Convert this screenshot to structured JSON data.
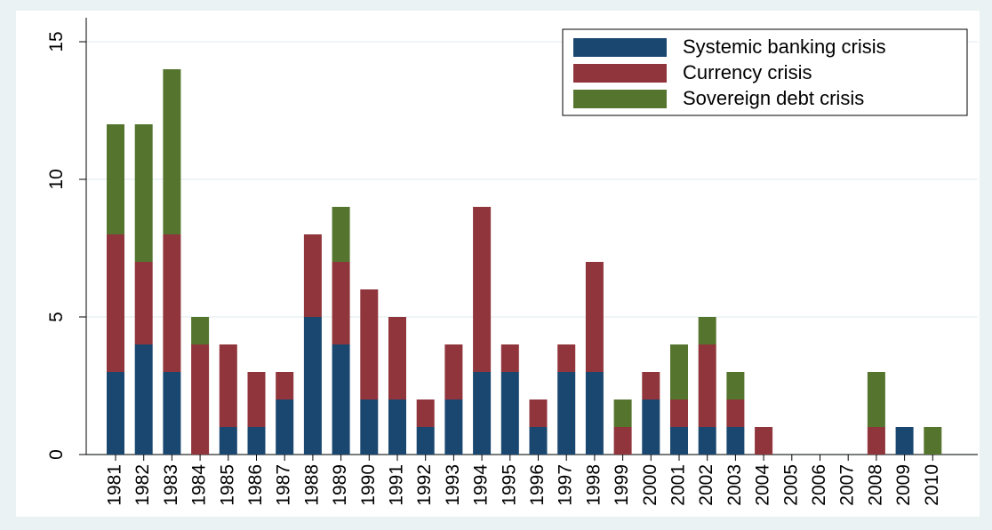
{
  "chart_data": {
    "type": "stacked_bar",
    "categories": [
      "1981",
      "1982",
      "1983",
      "1984",
      "1985",
      "1986",
      "1987",
      "1988",
      "1989",
      "1990",
      "1991",
      "1992",
      "1993",
      "1994",
      "1995",
      "1996",
      "1997",
      "1998",
      "1999",
      "2000",
      "2001",
      "2002",
      "2003",
      "2004",
      "2005",
      "2006",
      "2007",
      "2008",
      "2009",
      "2010"
    ],
    "series": [
      {
        "name": "Systemic banking crisis",
        "color": "#1a476f",
        "values": [
          3,
          4,
          3,
          0,
          1,
          1,
          2,
          5,
          4,
          2,
          2,
          1,
          2,
          3,
          3,
          1,
          3,
          3,
          0,
          2,
          1,
          1,
          1,
          0,
          0,
          0,
          0,
          0,
          1,
          0
        ]
      },
      {
        "name": "Currency crisis",
        "color": "#90353b",
        "values": [
          5,
          3,
          5,
          4,
          3,
          2,
          1,
          3,
          3,
          4,
          3,
          1,
          2,
          6,
          1,
          1,
          1,
          4,
          1,
          1,
          1,
          3,
          1,
          1,
          0,
          0,
          0,
          1,
          0,
          0
        ]
      },
      {
        "name": "Sovereign debt crisis",
        "color": "#55752f",
        "values": [
          4,
          5,
          6,
          1,
          0,
          0,
          0,
          0,
          2,
          0,
          0,
          0,
          0,
          0,
          0,
          0,
          0,
          0,
          1,
          0,
          2,
          1,
          1,
          0,
          0,
          0,
          0,
          2,
          0,
          1
        ]
      }
    ],
    "ylim": [
      0,
      15.5
    ],
    "yticks": [
      0,
      5,
      10,
      15
    ],
    "grid": true,
    "legend": "top-right"
  }
}
